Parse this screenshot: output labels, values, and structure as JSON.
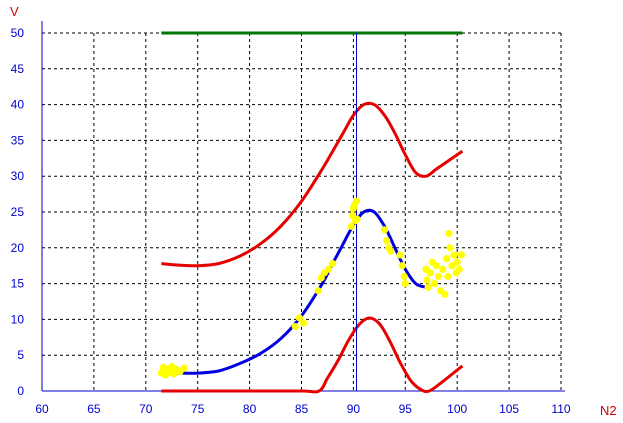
{
  "chart_data": {
    "type": "line",
    "title": "",
    "xlabel": "N2",
    "ylabel": "V",
    "xlim": [
      60,
      110
    ],
    "ylim": [
      0,
      50
    ],
    "x_ticks": [
      60,
      65,
      70,
      75,
      80,
      85,
      90,
      95,
      100,
      105,
      110
    ],
    "y_ticks": [
      0,
      5,
      10,
      15,
      20,
      25,
      30,
      35,
      40,
      45,
      50
    ],
    "grid": true,
    "vertical_marker_x": 90.3,
    "colors": {
      "axis_text": "#0000cc",
      "axis_name": "#cc0000",
      "axis_line": "#0000cc",
      "grid": "#000000",
      "limit_line": "#007700",
      "bounds": "#e60000",
      "fit": "#0000e0",
      "samples": "#ffff00",
      "marker": "#0000cc"
    },
    "series": [
      {
        "role": "limit",
        "color": "#007700",
        "x": [
          71.5,
          100.5
        ],
        "y": [
          50,
          50
        ]
      },
      {
        "role": "upper-bound",
        "color": "#e60000",
        "x": [
          71.5,
          73,
          75,
          77,
          79,
          81,
          83,
          85,
          87,
          89,
          90,
          91,
          92,
          93,
          94,
          95,
          96,
          97,
          98,
          99,
          100.5
        ],
        "y": [
          17.8,
          17.6,
          17.5,
          17.8,
          18.8,
          20.5,
          23,
          26.5,
          31,
          36,
          38.5,
          40,
          40,
          38.5,
          36,
          33,
          30.5,
          30,
          31,
          32,
          33.5
        ]
      },
      {
        "role": "fit",
        "color": "#0000e0",
        "x": [
          71.5,
          73,
          75,
          77,
          79,
          81,
          83,
          85,
          87,
          88,
          89,
          90,
          91,
          92,
          93,
          94,
          95,
          96,
          97
        ],
        "y": [
          2.6,
          2.5,
          2.5,
          2.8,
          3.8,
          5.2,
          7.3,
          10.5,
          15,
          17.8,
          20.5,
          23.2,
          25,
          25,
          23,
          20,
          17,
          15,
          14.5
        ]
      },
      {
        "role": "lower-bound",
        "color": "#e60000",
        "x": [
          71.5,
          75,
          80,
          85,
          86.7,
          87.5,
          88.5,
          89.5,
          90.5,
          91.5,
          92.5,
          93.5,
          94.5,
          95.5,
          96.5,
          97.3,
          98.5,
          100.5
        ],
        "y": [
          0,
          0,
          0,
          0,
          0,
          1.8,
          4.2,
          7,
          9.2,
          10.2,
          9.4,
          7,
          4,
          1.5,
          0.2,
          0,
          1.2,
          3.5
        ]
      }
    ],
    "scatter": {
      "name": "samples",
      "color": "#ffff00",
      "points": [
        [
          71.5,
          2.5
        ],
        [
          71.7,
          3.3
        ],
        [
          71.9,
          2.2
        ],
        [
          72.1,
          3.0
        ],
        [
          72.3,
          2.6
        ],
        [
          72.5,
          3.4
        ],
        [
          72.7,
          2.4
        ],
        [
          73.0,
          3.0
        ],
        [
          73.3,
          2.7
        ],
        [
          73.7,
          3.2
        ],
        [
          84.4,
          9.0
        ],
        [
          84.8,
          10.2
        ],
        [
          85.2,
          9.5
        ],
        [
          86.6,
          14.0
        ],
        [
          86.9,
          15.8
        ],
        [
          87.2,
          16.5
        ],
        [
          87.6,
          17.0
        ],
        [
          88.0,
          17.8
        ],
        [
          89.8,
          23.0
        ],
        [
          89.9,
          24.5
        ],
        [
          90.0,
          25.5
        ],
        [
          90.1,
          26.0
        ],
        [
          90.2,
          23.8
        ],
        [
          90.3,
          26.5
        ],
        [
          90.35,
          24.0
        ],
        [
          93.0,
          22.5
        ],
        [
          93.2,
          21.0
        ],
        [
          93.4,
          20.0
        ],
        [
          93.6,
          19.5
        ],
        [
          94.5,
          19.0
        ],
        [
          94.7,
          17.5
        ],
        [
          94.9,
          16.0
        ],
        [
          95.0,
          15.0
        ],
        [
          97.0,
          17.0
        ],
        [
          97.1,
          15.5
        ],
        [
          97.2,
          14.5
        ],
        [
          97.4,
          16.5
        ],
        [
          97.6,
          18.0
        ],
        [
          97.8,
          15.0
        ],
        [
          98.0,
          17.5
        ],
        [
          98.2,
          16.0
        ],
        [
          98.4,
          14.0
        ],
        [
          98.6,
          17.0
        ],
        [
          98.8,
          13.5
        ],
        [
          99.0,
          18.5
        ],
        [
          99.1,
          16.0
        ],
        [
          99.2,
          22.0
        ],
        [
          99.3,
          20.0
        ],
        [
          99.5,
          17.5
        ],
        [
          99.7,
          19.0
        ],
        [
          99.9,
          16.5
        ],
        [
          100.0,
          18.0
        ],
        [
          100.2,
          17.0
        ],
        [
          100.4,
          19.0
        ]
      ]
    }
  }
}
